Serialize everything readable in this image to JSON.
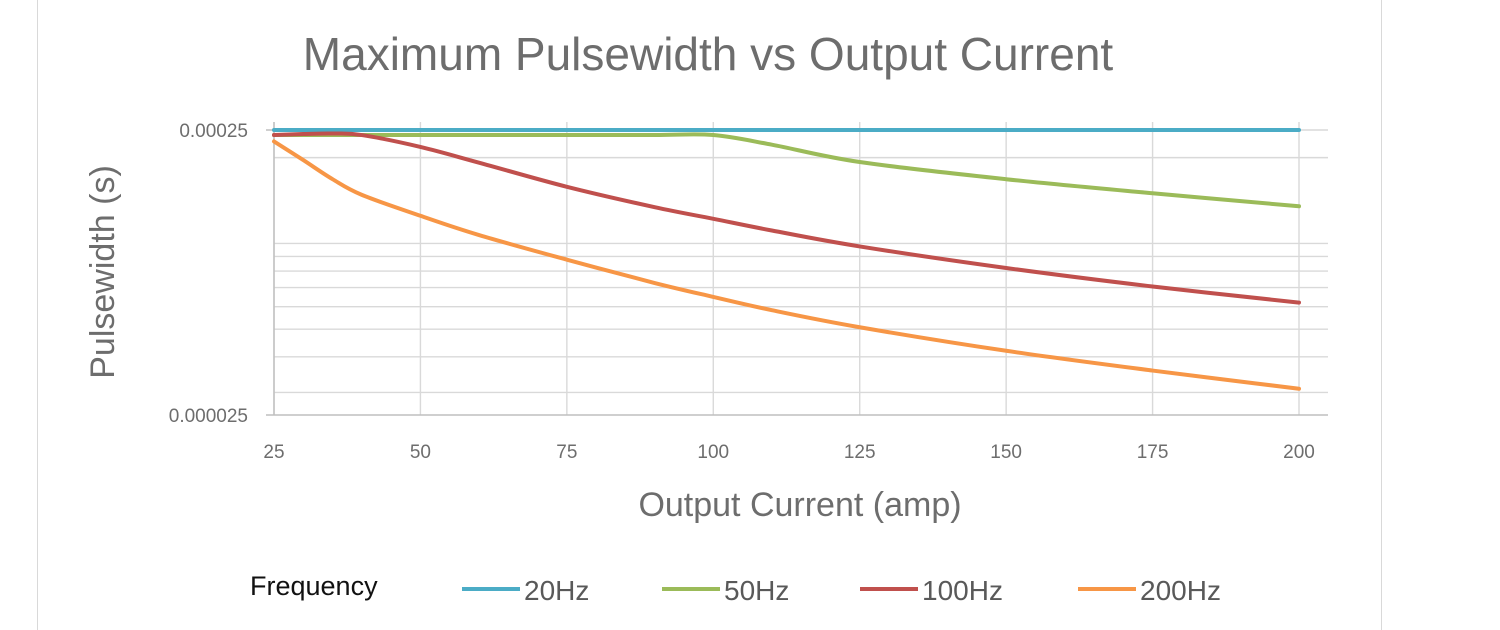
{
  "chart_data": {
    "type": "line",
    "title": "Maximum Pulsewidth vs Output Current",
    "xlabel": "Output Current (amp)",
    "ylabel": "Pulsewidth (s)",
    "x_ticks": [
      "25",
      "50",
      "75",
      "100",
      "125",
      "150",
      "175",
      "200"
    ],
    "y_ticks": [
      "0.000025",
      "0.00025"
    ],
    "xlim": [
      25,
      200
    ],
    "ylim": [
      2.5e-05,
      0.00025
    ],
    "y_scale": "log",
    "grid": true,
    "legend_title": "Frequency",
    "legend_position": "bottom",
    "x": [
      25,
      30,
      35,
      40,
      50,
      60,
      75,
      90,
      100,
      110,
      125,
      150,
      175,
      200
    ],
    "series": [
      {
        "name": "20Hz",
        "color": "#4bacc6",
        "values": [
          0.00025,
          0.00025,
          0.00025,
          0.00025,
          0.00025,
          0.00025,
          0.00025,
          0.00025,
          0.00025,
          0.00025,
          0.00025,
          0.00025,
          0.00025,
          0.00025
        ]
      },
      {
        "name": "50Hz",
        "color": "#9bbb59",
        "values": [
          0.00024,
          0.00024,
          0.00024,
          0.00024,
          0.00024,
          0.00024,
          0.00024,
          0.00024,
          0.00024,
          0.000222,
          0.000193,
          0.000168,
          0.00015,
          0.000135
        ]
      },
      {
        "name": "100Hz",
        "color": "#c0504d",
        "values": [
          0.00024,
          0.000242,
          0.000243,
          0.00024,
          0.000218,
          0.000192,
          0.000158,
          0.000134,
          0.000122,
          0.000111,
          9.76e-05,
          8.2e-05,
          7.06e-05,
          6.2e-05
        ]
      },
      {
        "name": "200Hz",
        "color": "#f79646",
        "values": [
          0.000228,
          0.000196,
          0.000168,
          0.000148,
          0.000125,
          0.000107,
          8.77e-05,
          7.26e-05,
          6.49e-05,
          5.83e-05,
          5.08e-05,
          4.2e-05,
          3.58e-05,
          3.09e-05
        ]
      }
    ]
  }
}
